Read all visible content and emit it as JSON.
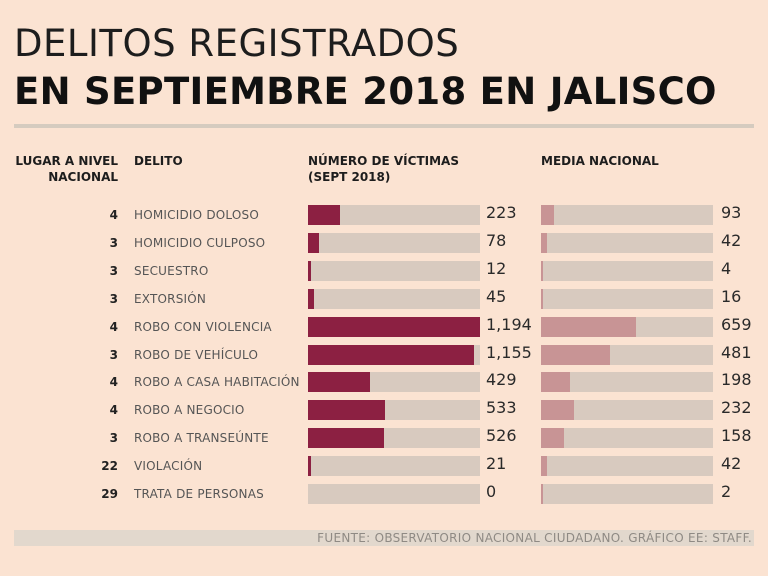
{
  "title_line1": "DELITOS REGISTRADOS",
  "title_line2": "EN SEPTIEMBRE 2018 EN JALISCO",
  "headers": {
    "rank_line1": "LUGAR A NIVEL",
    "rank_line2": "NACIONAL",
    "crime": "DELITO",
    "victims_line1": "NÚMERO DE VÍCTIMAS",
    "victims_line2": "(SEPT 2018)",
    "national": "MEDIA NACIONAL"
  },
  "colors": {
    "victims_bar": "#8c2042",
    "national_bar": "#c89495",
    "track": "#d8cabf",
    "background": "#fbe3d2"
  },
  "source": "FUENTE: OBSERVATORIO NACIONAL CIUDADANO. GRÁFICO EE: STAFF.",
  "chart_data": {
    "type": "bar",
    "orientation": "horizontal",
    "categories": [
      "HOMICIDIO DOLOSO",
      "HOMICIDIO CULPOSO",
      "SECUESTRO",
      "EXTORSIÓN",
      "ROBO CON VIOLENCIA",
      "ROBO DE VEHÍCULO",
      "ROBO A CASA HABITACIÓN",
      "ROBO A NEGOCIO",
      "ROBO A TRANSEÚNTE",
      "VIOLACIÓN",
      "TRATA DE PERSONAS"
    ],
    "rank": [
      4,
      3,
      3,
      3,
      4,
      3,
      4,
      4,
      3,
      22,
      29
    ],
    "series": [
      {
        "name": "NÚMERO DE VÍCTIMAS (SEPT 2018)",
        "values": [
          223,
          78,
          12,
          45,
          1194,
          1155,
          429,
          533,
          526,
          21,
          0
        ],
        "labels": [
          "223",
          "78",
          "12",
          "45",
          "1,194",
          "1,155",
          "429",
          "533",
          "526",
          "21",
          "0"
        ]
      },
      {
        "name": "MEDIA NACIONAL",
        "values": [
          93,
          42,
          4,
          16,
          659,
          481,
          198,
          232,
          158,
          42,
          2
        ],
        "labels": [
          "93",
          "42",
          "4",
          "16",
          "659",
          "481",
          "198",
          "232",
          "158",
          "42",
          "2"
        ]
      }
    ],
    "xlim": [
      0,
      1194
    ]
  }
}
